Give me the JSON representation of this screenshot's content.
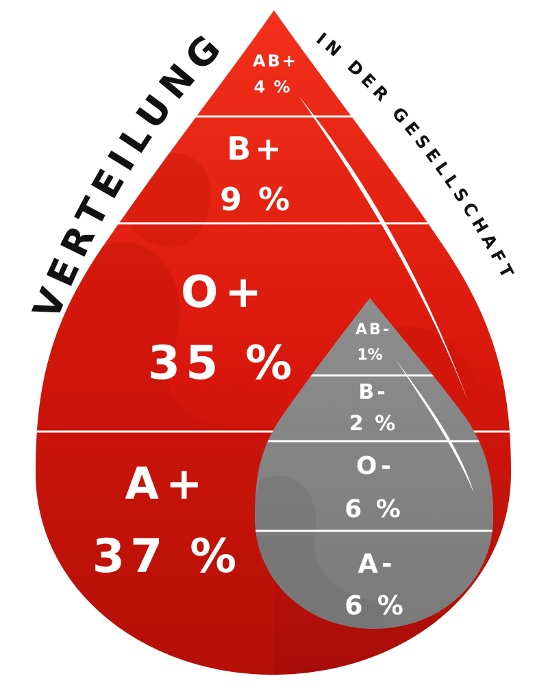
{
  "title": "VERTEILUNG",
  "subtitle": "IN DER GESELLSCHAFT",
  "colors": {
    "positive_drop": "#e0190e",
    "negative_drop": "#8a8a8a",
    "divider": "#ffffff",
    "text": "#ffffff",
    "title_text": "#111111"
  },
  "positive": [
    {
      "group": "AB+",
      "percent": "4 %",
      "value": 4
    },
    {
      "group": "B+",
      "percent": "9 %",
      "value": 9
    },
    {
      "group": "O+",
      "percent": "35 %",
      "value": 35
    },
    {
      "group": "A+",
      "percent": "37 %",
      "value": 37
    }
  ],
  "negative": [
    {
      "group": "AB-",
      "percent": "1%",
      "value": 1
    },
    {
      "group": "B-",
      "percent": "2 %",
      "value": 2
    },
    {
      "group": "O-",
      "percent": "6 %",
      "value": 6
    },
    {
      "group": "A-",
      "percent": "6 %",
      "value": 6
    }
  ]
}
